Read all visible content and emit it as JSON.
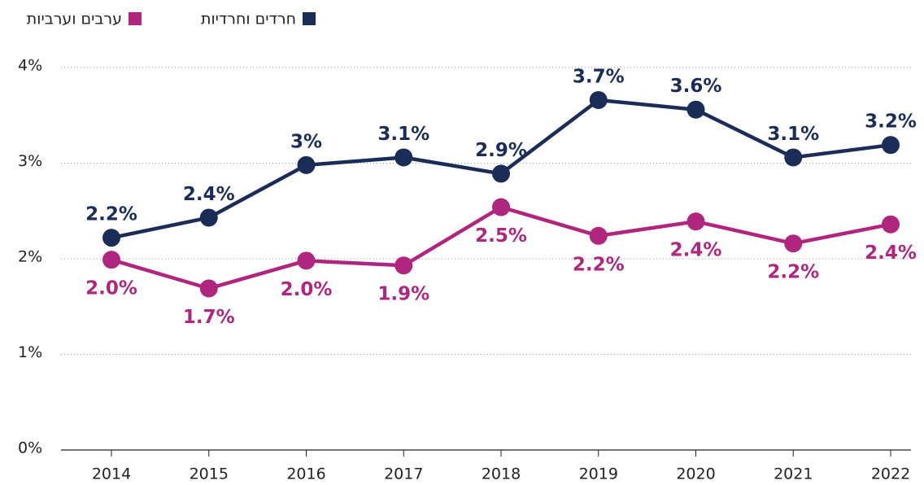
{
  "chart_data": {
    "type": "line",
    "categories": [
      "2014",
      "2015",
      "2016",
      "2017",
      "2018",
      "2019",
      "2020",
      "2021",
      "2022"
    ],
    "series": [
      {
        "name": "חרדים וחרדיות",
        "color": "#1b2d57",
        "values": [
          2.22,
          2.43,
          2.98,
          3.06,
          2.89,
          3.66,
          3.56,
          3.06,
          3.19
        ],
        "value_labels": [
          "2.2%",
          "2.4%",
          "3%",
          "3.1%",
          "2.9%",
          "3.7%",
          "3.6%",
          "3.1%",
          "3.2%"
        ]
      },
      {
        "name": "ערבים וערביות",
        "color": "#b0267f",
        "values": [
          1.99,
          1.69,
          1.98,
          1.93,
          2.54,
          2.24,
          2.39,
          2.16,
          2.36
        ],
        "value_labels": [
          "2.0%",
          "1.7%",
          "2.0%",
          "1.9%",
          "2.5%",
          "2.2%",
          "2.4%",
          "2.2%",
          "2.4%"
        ]
      }
    ],
    "ylim": [
      0,
      4
    ],
    "yticks": [
      {
        "value": 0,
        "label": "0%"
      },
      {
        "value": 1,
        "label": "1%"
      },
      {
        "value": 2,
        "label": "2%"
      },
      {
        "value": 3,
        "label": "3%"
      },
      {
        "value": 4,
        "label": "4%"
      }
    ],
    "grid": true,
    "legend": "top-left"
  }
}
